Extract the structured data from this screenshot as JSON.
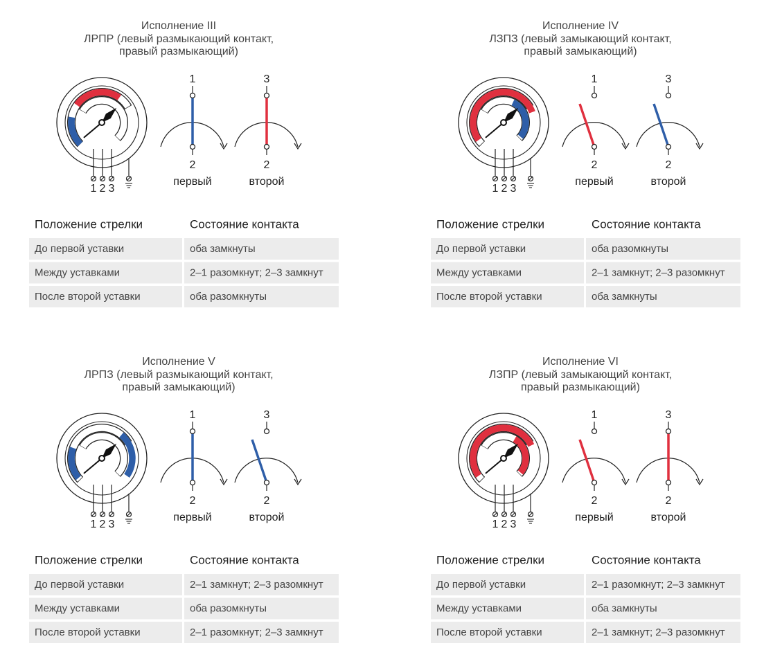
{
  "panels": [
    {
      "title": "Исполнение III",
      "subtitle": [
        "ЛРПР (левый размыкающий контакт,",
        "правый размыкающий)"
      ],
      "switches": [
        {
          "top": "1",
          "bottom": "2",
          "label": "первый"
        },
        {
          "top": "3",
          "bottom": "2",
          "label": "второй"
        }
      ],
      "terminals": [
        "1",
        "2",
        "3"
      ],
      "table": {
        "header": [
          "Положение стрелки",
          "Состояние контакта"
        ],
        "rows": [
          [
            "До первой уставки",
            "оба замкнуты"
          ],
          [
            "Между уставками",
            "2–1 разомкнут; 2–3 замкнут"
          ],
          [
            "После второй уставки",
            "оба разомкнуты"
          ]
        ]
      }
    },
    {
      "title": "Исполнение IV",
      "subtitle": [
        "ЛЗПЗ (левый замыкающий контакт,",
        "правый замыкающий)"
      ],
      "switches": [
        {
          "top": "1",
          "bottom": "2",
          "label": "первый"
        },
        {
          "top": "3",
          "bottom": "2",
          "label": "второй"
        }
      ],
      "terminals": [
        "1",
        "2",
        "3"
      ],
      "table": {
        "header": [
          "Положение стрелки",
          "Состояние контакта"
        ],
        "rows": [
          [
            "До первой уставки",
            "оба разомкнуты"
          ],
          [
            "Между уставками",
            "2–1 замкнут; 2–3 разомкнут"
          ],
          [
            "После второй уставки",
            "оба замкнуты"
          ]
        ]
      }
    },
    {
      "title": "Исполнение V",
      "subtitle": [
        "ЛРПЗ (левый размыкающий контакт,",
        "правый замыкающий)"
      ],
      "switches": [
        {
          "top": "1",
          "bottom": "2",
          "label": "первый"
        },
        {
          "top": "3",
          "bottom": "2",
          "label": "второй"
        }
      ],
      "terminals": [
        "1",
        "2",
        "3"
      ],
      "table": {
        "header": [
          "Положение стрелки",
          "Состояние контакта"
        ],
        "rows": [
          [
            "До первой уставки",
            "2–1 замкнут; 2–3 разомкнут"
          ],
          [
            "Между уставками",
            "оба разомкнуты"
          ],
          [
            "После второй уставки",
            "2–1 разомкнут; 2–3 замкнут"
          ]
        ]
      }
    },
    {
      "title": "Исполнение VI",
      "subtitle": [
        "ЛЗПР (левый замыкающий контакт,",
        "правый размыкающий)"
      ],
      "switches": [
        {
          "top": "1",
          "bottom": "2",
          "label": "первый"
        },
        {
          "top": "3",
          "bottom": "2",
          "label": "второй"
        }
      ],
      "terminals": [
        "1",
        "2",
        "3"
      ],
      "table": {
        "header": [
          "Положение стрелки",
          "Состояние контакта"
        ],
        "rows": [
          [
            "До первой уставки",
            "2–1 разомкнут; 2–3 замкнут"
          ],
          [
            "Между уставками",
            "оба замкнуты"
          ],
          [
            "После второй уставки",
            "2–1 замкнут; 2–3 разомкнут"
          ]
        ]
      }
    }
  ]
}
